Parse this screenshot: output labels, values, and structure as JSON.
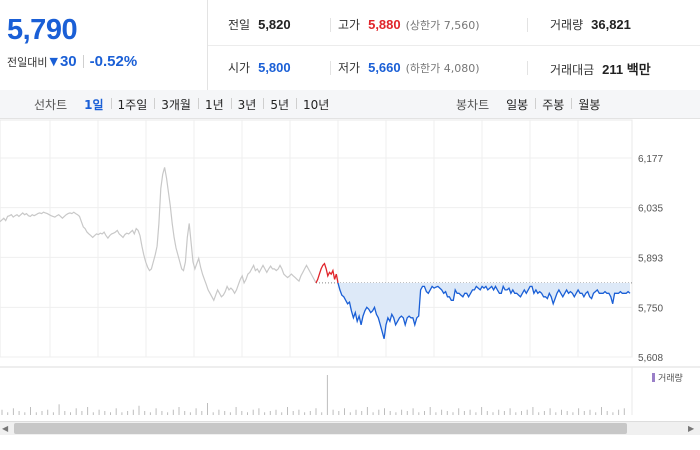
{
  "summary": {
    "current_price": "5,790",
    "change_label": "전일대비",
    "change_direction_icon": "down-triangle-icon",
    "change_abs": "30",
    "change_pct": "-0.52%",
    "prev_close_label": "전일",
    "prev_close": "5,820",
    "open_label": "시가",
    "open": "5,800",
    "high_label": "고가",
    "high": "5,880",
    "upper_limit": "(상한가 7,560)",
    "low_label": "저가",
    "low": "5,660",
    "lower_limit": "(하한가 4,080)",
    "volume_label": "거래량",
    "volume": "36,821",
    "amount_label": "거래대금",
    "amount": "211 백만"
  },
  "toolbar": {
    "line_chart_title": "선차트",
    "line_periods": [
      "1일",
      "1주일",
      "3개월",
      "1년",
      "3년",
      "5년",
      "10년"
    ],
    "active_period": "1일",
    "candle_chart_title": "봉차트",
    "candle_periods": [
      "일봉",
      "주봉",
      "월봉"
    ]
  },
  "colors": {
    "price_blue": "#1a5fd6",
    "price_red": "#e0242a",
    "prev_day_line": "#c8c8c8",
    "fill_blue": "#dde9f8"
  },
  "chart_data": {
    "type": "line",
    "ylim": [
      5608,
      6177
    ],
    "y_ticks": [
      "6,177",
      "6,035",
      "5,893",
      "5,750",
      "5,608"
    ],
    "reference_price": 5820,
    "volume_legend": "거래량",
    "series": [
      {
        "values": [
          5995,
          6000,
          6005,
          5998,
          6010,
          6012,
          6015,
          6008,
          6012,
          6015,
          6010,
          6015,
          6020,
          6015,
          6018,
          6012,
          6010,
          6015,
          6012,
          6015,
          6018,
          6020,
          6018,
          6022,
          6020,
          6018,
          6015,
          6012,
          6010,
          6008,
          6012,
          6015,
          6010,
          6005,
          6010,
          6015,
          6018,
          6020,
          6018,
          6022,
          6018,
          6015,
          6010,
          5995,
          5980,
          5975,
          5965,
          5960,
          5955,
          5950,
          5955,
          5960,
          5958,
          5962,
          5960,
          5965,
          5955,
          5948,
          5955,
          5960,
          5962,
          5965,
          5970,
          5960,
          5955,
          5950,
          5958,
          5962,
          5960,
          5965,
          5970,
          5960,
          5975,
          5970,
          5955,
          5925,
          5900,
          5880,
          5865,
          5855,
          5860,
          5880,
          5900,
          5925,
          5990,
          6090,
          6130,
          6150,
          6120,
          6080,
          6040,
          5990,
          5950,
          5920,
          5900,
          5880,
          5860,
          5855,
          5880,
          5950,
          5990,
          5935,
          5880,
          5860,
          5875,
          5890,
          5865,
          5845,
          5830,
          5815,
          5800,
          5790,
          5780,
          5770,
          5785,
          5800,
          5790,
          5780,
          5785,
          5795,
          5810,
          5800,
          5805,
          5800,
          5790,
          5800,
          5815,
          5830,
          5840,
          5820,
          5830,
          5845,
          5850,
          5860,
          5870,
          5855,
          5860,
          5850,
          5860,
          5870,
          5860,
          5850,
          5860,
          5868,
          5860,
          5860,
          5855,
          5860,
          5870,
          5860,
          5845,
          5840,
          5835,
          5840,
          5845,
          5840,
          5835,
          5830,
          5825,
          5840,
          5850,
          5860,
          5870,
          5860,
          5850,
          5840,
          5830,
          5820
        ]
      },
      {
        "values": [
          5820,
          5830,
          5845,
          5860,
          5870,
          5875,
          5860,
          5840,
          5850,
          5845,
          5855,
          5830,
          5845,
          5820
        ]
      },
      {
        "values": [
          5820,
          5800,
          5785,
          5780,
          5770,
          5760,
          5765,
          5740,
          5720,
          5735,
          5710,
          5725,
          5700,
          5725,
          5740,
          5750,
          5745,
          5735,
          5740,
          5750,
          5730,
          5720,
          5700,
          5680,
          5660,
          5700,
          5720,
          5710,
          5730,
          5720,
          5700,
          5710,
          5720,
          5725,
          5720,
          5700,
          5720,
          5725,
          5720,
          5720,
          5700,
          5720,
          5725,
          5800,
          5810,
          5810,
          5795,
          5790,
          5800,
          5810,
          5805,
          5808,
          5810,
          5805,
          5800,
          5790,
          5795,
          5780,
          5780,
          5770,
          5770,
          5800,
          5790,
          5790,
          5785,
          5780,
          5790,
          5790,
          5780,
          5790,
          5800,
          5800,
          5810,
          5805,
          5800,
          5810,
          5805,
          5810,
          5800,
          5805,
          5810,
          5800,
          5810,
          5800,
          5790,
          5790,
          5810,
          5800,
          5800,
          5805,
          5790,
          5800,
          5790,
          5790,
          5785,
          5780,
          5790,
          5800,
          5790,
          5800,
          5810,
          5810,
          5790,
          5800,
          5790,
          5795,
          5790,
          5780,
          5780,
          5775,
          5790,
          5780,
          5760,
          5775,
          5790,
          5800,
          5790,
          5780,
          5790,
          5800,
          5790,
          5795,
          5790,
          5780,
          5790,
          5800,
          5790,
          5790,
          5780,
          5790,
          5795,
          5780,
          5775,
          5790,
          5795,
          5800,
          5790,
          5790,
          5790,
          5795,
          5790,
          5790,
          5780,
          5760,
          5790,
          5790,
          5790,
          5795,
          5790,
          5790,
          5790,
          5795,
          5790
        ]
      }
    ],
    "volume": [
      4,
      2,
      5,
      3,
      2,
      6,
      2,
      3,
      4,
      2,
      8,
      3,
      2,
      5,
      3,
      6,
      2,
      4,
      3,
      2,
      5,
      2,
      3,
      4,
      7,
      3,
      2,
      5,
      3,
      2,
      4,
      6,
      3,
      2,
      5,
      3,
      9,
      2,
      4,
      3,
      2,
      6,
      3,
      2,
      4,
      5,
      2,
      3,
      4,
      2,
      6,
      3,
      4,
      2,
      3,
      5,
      2,
      30,
      4,
      3,
      5,
      2,
      4,
      3,
      6,
      2,
      4,
      5,
      3,
      2,
      4,
      3,
      5,
      2,
      3,
      6,
      2,
      4,
      3,
      2,
      5,
      3,
      4,
      2,
      6,
      3,
      2,
      4,
      3,
      5,
      2,
      3,
      4,
      6,
      2,
      3,
      5,
      2,
      4,
      3,
      2,
      5,
      3,
      4,
      2,
      6,
      3,
      2,
      4,
      5
    ]
  }
}
